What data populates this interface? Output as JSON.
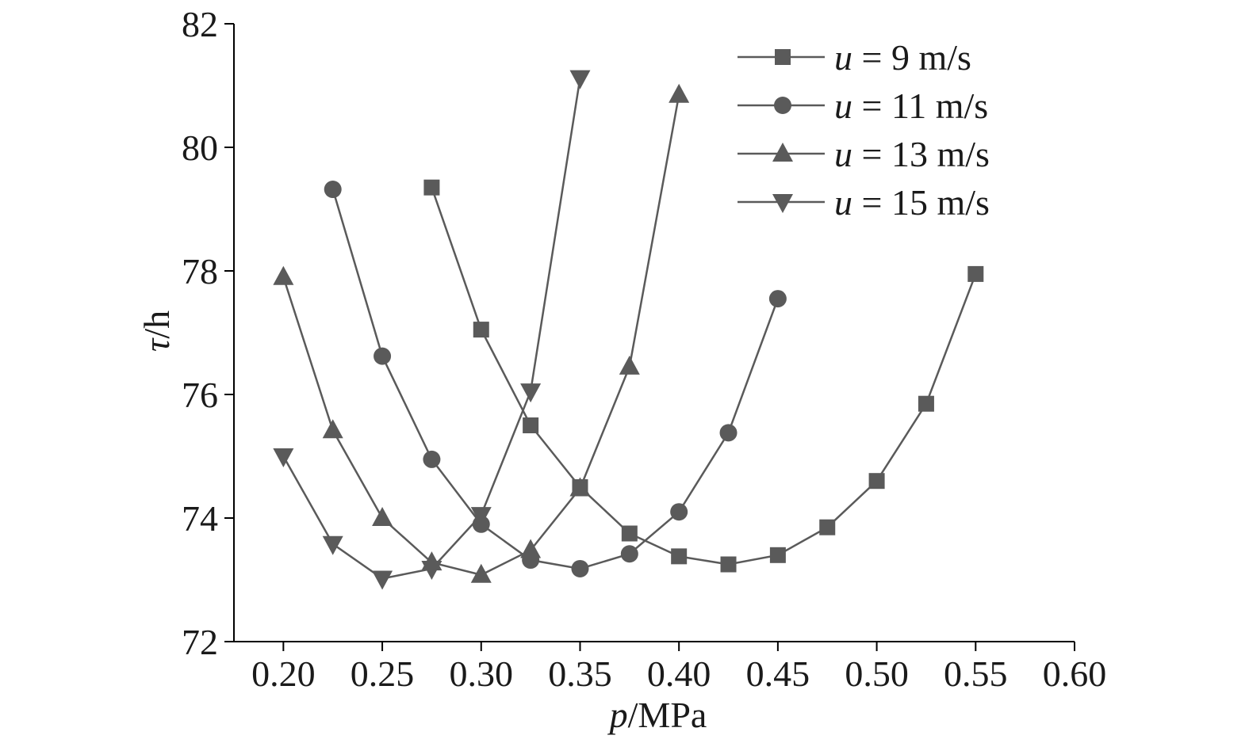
{
  "chart_data": {
    "type": "line",
    "x_axis": {
      "label_var": "p",
      "label_unit": "/MPa",
      "ticks": [
        "0.20",
        "0.25",
        "0.30",
        "0.35",
        "0.40",
        "0.45",
        "0.50",
        "0.55",
        "0.60"
      ],
      "tick_values": [
        0.2,
        0.25,
        0.3,
        0.35,
        0.4,
        0.45,
        0.5,
        0.55,
        0.6
      ],
      "range": [
        0.175,
        0.6
      ]
    },
    "y_axis": {
      "label_var": "τ",
      "label_unit": "/h",
      "ticks": [
        "72",
        "74",
        "76",
        "78",
        "80",
        "82"
      ],
      "tick_values": [
        72,
        74,
        76,
        78,
        80,
        82
      ],
      "range": [
        72,
        82
      ]
    },
    "grid": false,
    "legend_position": "top-right",
    "color": "#5a5a5a",
    "series": [
      {
        "name_var": "u",
        "name_rest": " = 9  m/s",
        "marker": "square",
        "x": [
          0.275,
          0.3,
          0.325,
          0.35,
          0.375,
          0.4,
          0.425,
          0.45,
          0.475,
          0.5,
          0.525,
          0.55
        ],
        "y": [
          79.35,
          77.05,
          75.5,
          74.5,
          73.75,
          73.38,
          73.25,
          73.4,
          73.85,
          74.6,
          75.85,
          77.95
        ]
      },
      {
        "name_var": "u",
        "name_rest": " = 11 m/s",
        "marker": "circle",
        "x": [
          0.225,
          0.25,
          0.275,
          0.3,
          0.325,
          0.35,
          0.375,
          0.4,
          0.425,
          0.45
        ],
        "y": [
          79.32,
          76.62,
          74.95,
          73.9,
          73.32,
          73.18,
          73.42,
          74.1,
          75.38,
          77.55
        ]
      },
      {
        "name_var": "u",
        "name_rest": " = 13 m/s",
        "marker": "triangle-up",
        "x": [
          0.2,
          0.225,
          0.25,
          0.275,
          0.3,
          0.325,
          0.35,
          0.375,
          0.4
        ],
        "y": [
          77.9,
          75.42,
          74.0,
          73.28,
          73.08,
          73.48,
          74.48,
          76.45,
          80.85
        ]
      },
      {
        "name_var": "u",
        "name_rest": " = 15 m/s",
        "marker": "triangle-down",
        "x": [
          0.2,
          0.225,
          0.25,
          0.275,
          0.3,
          0.325,
          0.35
        ],
        "y": [
          75.0,
          73.58,
          73.02,
          73.18,
          74.05,
          76.05,
          81.12
        ]
      }
    ]
  }
}
